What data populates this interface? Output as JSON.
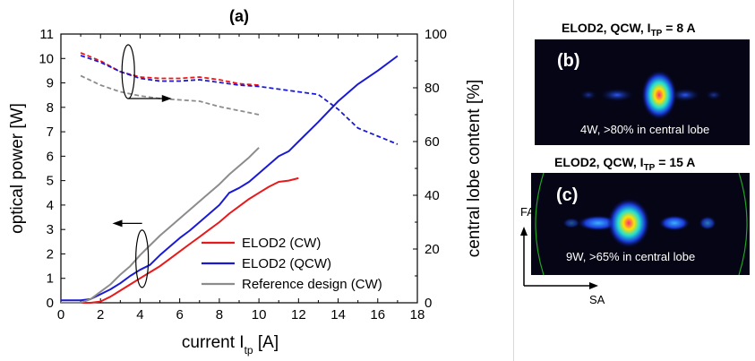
{
  "chart_data": {
    "type": "line",
    "panel_label": "(a)",
    "xlabel_main": "current I",
    "xlabel_sub": "tp",
    "xlabel_unit": "[A]",
    "ylabel_left": "optical power [W]",
    "ylabel_right": "central lobe content [%]",
    "xlim": [
      0,
      18
    ],
    "ylim_left": [
      0,
      11
    ],
    "ylim_right": [
      0,
      100
    ],
    "x_ticks": [
      "0",
      "2",
      "4",
      "6",
      "8",
      "10",
      "12",
      "14",
      "16",
      "18"
    ],
    "y_left_ticks": [
      "0",
      "1",
      "2",
      "3",
      "4",
      "5",
      "6",
      "7",
      "8",
      "9",
      "10",
      "11"
    ],
    "y_right_ticks": [
      "0",
      "20",
      "40",
      "60",
      "80",
      "100"
    ],
    "legend_position": "bottom-center",
    "series": [
      {
        "name": "ELOD2 (CW)",
        "axis": "left",
        "style": "solid",
        "color": "#e8191a",
        "x": [
          0,
          1,
          1.5,
          2,
          2.5,
          3,
          3.5,
          4,
          4.5,
          5,
          5.5,
          6,
          6.5,
          7,
          7.5,
          8,
          8.5,
          9,
          9.5,
          10,
          10.5,
          11,
          11.5,
          12
        ],
        "y": [
          0,
          0,
          0,
          0.05,
          0.25,
          0.5,
          0.75,
          1.0,
          1.25,
          1.5,
          1.8,
          2.1,
          2.4,
          2.7,
          3.0,
          3.3,
          3.65,
          3.95,
          4.25,
          4.5,
          4.75,
          4.95,
          5.0,
          5.1
        ]
      },
      {
        "name": "ELOD2 (QCW)",
        "axis": "left",
        "style": "solid",
        "color": "#1a1ad6",
        "x": [
          0,
          1,
          1.5,
          2,
          2.5,
          3,
          3.5,
          4,
          4.5,
          5,
          5.5,
          6,
          6.5,
          7,
          7.5,
          8,
          8.5,
          9,
          9.5,
          10,
          10.5,
          11,
          11.5,
          12,
          13,
          14,
          15,
          16,
          17
        ],
        "y": [
          0.1,
          0.1,
          0.15,
          0.35,
          0.55,
          0.8,
          1.1,
          1.35,
          1.55,
          1.95,
          2.3,
          2.65,
          2.95,
          3.3,
          3.65,
          4.0,
          4.5,
          4.7,
          4.95,
          5.3,
          5.65,
          6.0,
          6.2,
          6.6,
          7.4,
          8.25,
          8.95,
          9.5,
          10.1
        ]
      },
      {
        "name": "Reference design (CW)",
        "axis": "left",
        "style": "solid",
        "color": "#8c8c8c",
        "x": [
          0,
          1,
          1.5,
          2,
          2.5,
          3,
          3.5,
          4,
          4.5,
          5,
          5.5,
          6,
          6.5,
          7,
          7.5,
          8,
          8.5,
          9,
          9.5,
          10
        ],
        "y": [
          0,
          0,
          0.15,
          0.45,
          0.75,
          1.15,
          1.5,
          1.95,
          2.35,
          2.75,
          3.1,
          3.45,
          3.8,
          4.15,
          4.5,
          4.85,
          5.25,
          5.6,
          5.95,
          6.35
        ]
      },
      {
        "name": "",
        "axis": "right",
        "style": "dashed",
        "color": "#e8191a",
        "x": [
          1,
          2,
          3,
          4,
          5,
          6,
          7,
          8,
          9,
          10
        ],
        "y": [
          93,
          90,
          86,
          84,
          83.5,
          83.5,
          84,
          83,
          81.5,
          81
        ]
      },
      {
        "name": "",
        "axis": "right",
        "style": "dashed",
        "color": "#1a1ad6",
        "x": [
          1,
          2,
          3,
          4,
          5,
          6,
          7,
          8,
          9,
          10,
          11,
          12,
          13,
          14,
          15,
          16,
          17
        ],
        "y": [
          92,
          89.5,
          86,
          83.5,
          82.5,
          82.5,
          83,
          82,
          81,
          80.5,
          79.5,
          78.5,
          77.5,
          72,
          65,
          62,
          59
        ]
      },
      {
        "name": "",
        "axis": "right",
        "style": "dashed",
        "color": "#8c8c8c",
        "x": [
          1,
          2,
          3,
          4,
          5,
          6,
          7,
          8,
          9,
          10
        ],
        "y": [
          84.5,
          81,
          78.5,
          77,
          76,
          75.5,
          75,
          73,
          71.5,
          70
        ]
      }
    ]
  },
  "panels": [
    {
      "label": "(b)",
      "title_prefix": "ELOD2, QCW, I",
      "title_sub": "TP",
      "title_suffix": " = 8 A",
      "caption": "4W, >80% in central lobe"
    },
    {
      "label": "(c)",
      "title_prefix": "ELOD2, QCW, I",
      "title_sub": "TP",
      "title_suffix": " = 15 A",
      "caption": "9W, >65% in central lobe"
    }
  ],
  "axes_indicator": {
    "vertical": "FA",
    "horizontal": "SA"
  }
}
